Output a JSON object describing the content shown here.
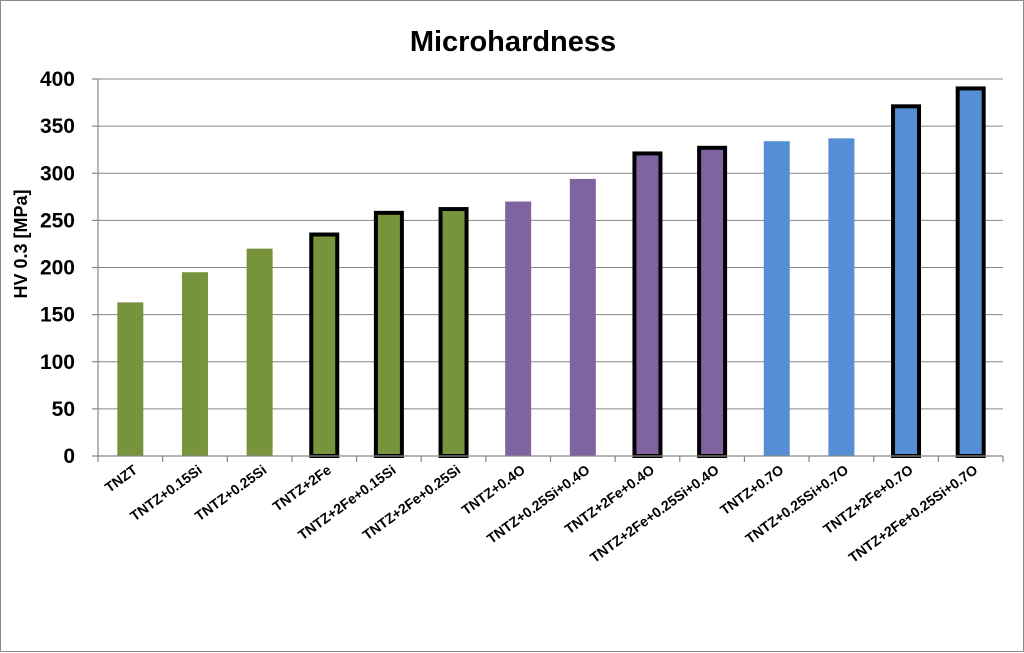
{
  "chart_data": {
    "type": "bar",
    "title": "Microhardness",
    "xlabel": "",
    "ylabel": "HV 0.3 [MPa]",
    "ylim": [
      0,
      400
    ],
    "yticks": [
      0,
      50,
      100,
      150,
      200,
      250,
      300,
      350,
      400
    ],
    "grid": true,
    "legend": "none",
    "categories": [
      "TNZT",
      "TNTZ+0.15Si",
      "TNTZ+0.25Si",
      "TNTZ+2Fe",
      "TNTZ+2Fe+0.15Si",
      "TNTZ+2Fe+0.25Si",
      "TNTZ+0.4O",
      "TNTZ+0.25Si+0.4O",
      "TNTZ+2Fe+0.4O",
      "TNTZ+2Fe+0.25Si+0.4O",
      "TNTZ+0.7O",
      "TNTZ+0.25Si+0.7O",
      "TNTZ+2Fe+0.7O",
      "TNTZ+2Fe+0.25Si+0.7O"
    ],
    "values": [
      163,
      195,
      220,
      235,
      258,
      262,
      270,
      294,
      321,
      327,
      334,
      337,
      371,
      390
    ],
    "bar_colors": [
      "#77933c",
      "#77933c",
      "#77933c",
      "#77933c",
      "#77933c",
      "#77933c",
      "#8064a2",
      "#8064a2",
      "#8064a2",
      "#8064a2",
      "#558ed5",
      "#558ed5",
      "#558ed5",
      "#558ed5"
    ],
    "bar_outlined": [
      false,
      false,
      false,
      true,
      true,
      true,
      false,
      false,
      true,
      true,
      false,
      false,
      true,
      true
    ],
    "outline_color": "#000000"
  }
}
